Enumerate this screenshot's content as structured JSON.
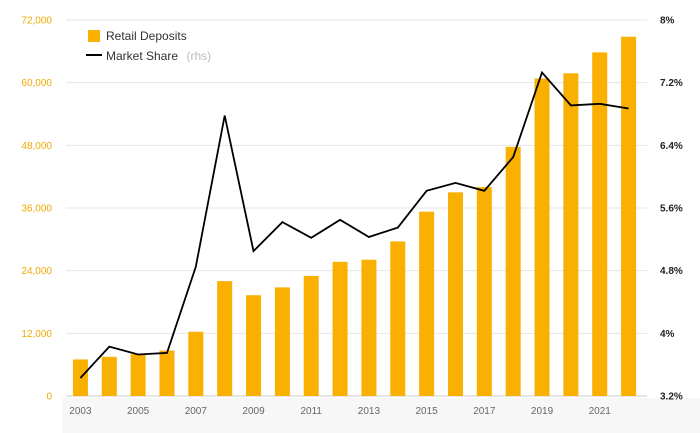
{
  "chart_data": {
    "type": "bar",
    "title": "",
    "categories": [
      "2003",
      "2004",
      "2005",
      "2006",
      "2007",
      "2008",
      "2009",
      "2010",
      "2011",
      "2012",
      "2013",
      "2014",
      "2015",
      "2016",
      "2017",
      "2018",
      "2019",
      "2020",
      "2021",
      "2022"
    ],
    "x_tick_labels": [
      "2003",
      "2005",
      "2007",
      "2009",
      "2011",
      "2013",
      "2015",
      "2017",
      "2019",
      "2021"
    ],
    "series": [
      {
        "name": "Retail Deposits",
        "type": "bar",
        "axis": "left",
        "color": "#F9B000",
        "values": [
          7000,
          7500,
          8000,
          8700,
          12300,
          22000,
          19300,
          20800,
          23000,
          25700,
          26100,
          29600,
          35300,
          39000,
          40000,
          47700,
          60800,
          61800,
          65800,
          68800
        ]
      },
      {
        "name": "Market Share",
        "type": "line",
        "axis": "right",
        "color": "#000000",
        "values": [
          3.43,
          3.83,
          3.73,
          3.75,
          4.85,
          6.78,
          5.05,
          5.42,
          5.22,
          5.45,
          5.23,
          5.35,
          5.82,
          5.92,
          5.82,
          6.25,
          7.33,
          6.91,
          6.93,
          6.87
        ]
      }
    ],
    "y_left": {
      "min": 0,
      "max": 72000,
      "ticks": [
        "0",
        "12,000",
        "24,000",
        "36,000",
        "48,000",
        "60,000",
        "72,000"
      ]
    },
    "y_right": {
      "min": 3.2,
      "max": 8.0,
      "ticks": [
        "3.2%",
        "4%",
        "4.8%",
        "5.6%",
        "6.4%",
        "7.2%",
        "8%"
      ]
    },
    "legend": {
      "position": "top-left",
      "bar_label": "Retail Deposits",
      "line_label": "Market Share",
      "line_note": "(rhs)"
    },
    "grid": true
  }
}
